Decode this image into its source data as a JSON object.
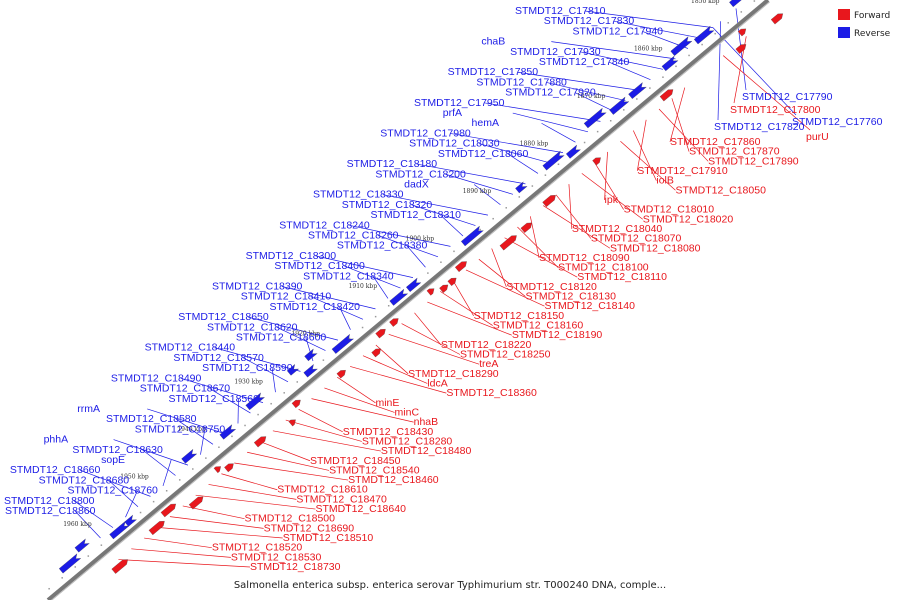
{
  "caption": "Salmonella enterica subsp. enterica serovar Typhimurium str. T000240 DNA, comple...",
  "colors": {
    "forward": "#e8171d",
    "reverse": "#1c1ce6",
    "backbone": "#777777",
    "tick": "#999999"
  },
  "legend": [
    {
      "key": "forward",
      "label": "Forward"
    },
    {
      "key": "reverse",
      "label": "Reverse"
    }
  ],
  "scale": {
    "unit": "kbp",
    "marks": [
      "1850 kbp",
      "1860 kbp",
      "1870 kbp",
      "1880 kbp",
      "1890 kbp",
      "1900 kbp",
      "1910 kbp",
      "1920 kbp",
      "1930 kbp",
      "1940 kbp",
      "1950 kbp",
      "1960 kbp"
    ]
  },
  "reverse_labels": [
    "STMDT12_C17810",
    "STMDT12_C17830",
    "STMDT12_C17940",
    "chaB",
    "STMDT12_C17930",
    "STMDT12_C17840",
    "STMDT12_C17850",
    "STMDT12_C17880",
    "STMDT12_C17920",
    "STMDT12_C17950",
    "prfA",
    "hemA",
    "STMDT12_C17980",
    "STMDT12_C18030",
    "STMDT12_C18060",
    "STMDT12_C18180",
    "STMDT12_C18200",
    "dadX",
    "STMDT12_C18330",
    "STMDT12_C18320",
    "STMDT12_C18310",
    "STMDT12_C18240",
    "STMDT12_C18260",
    "STMDT12_C18380",
    "STMDT12_C18300",
    "STMDT12_C18400",
    "STMDT12_C18340",
    "STMDT12_C18390",
    "STMDT12_C18410",
    "STMDT12_C18420",
    "STMDT12_C18650",
    "STMDT12_C18620",
    "STMDT12_C18600",
    "STMDT12_C18440",
    "STMDT12_C18570",
    "STMDT12_C18590",
    "STMDT12_C18490",
    "STMDT12_C18670",
    "STMDT12_C18560",
    "rrmA",
    "STMDT12_C18580",
    "STMDT12_C18750",
    "phhA",
    "STMDT12_C18630",
    "sopE",
    "STMDT12_C18660",
    "STMDT12_C18680",
    "STMDT12_C18760",
    "STMDT12_C18800",
    "STMDT12_C18860"
  ],
  "right_labels": [
    {
      "t": "STMDT12_C17790",
      "c": "reverse"
    },
    {
      "t": "STMDT12_C17800",
      "c": "forward"
    },
    {
      "t": "STMDT12_C17820",
      "c": "reverse"
    },
    {
      "t": "STMDT12_C17760",
      "c": "reverse"
    },
    {
      "t": "purU",
      "c": "forward"
    }
  ],
  "forward_labels": [
    "STMDT12_C17860",
    "STMDT12_C17870",
    "STMDT12_C17890",
    "STMDT12_C17910",
    "iolB",
    "STMDT12_C18050",
    "ipk",
    "STMDT12_C18010",
    "STMDT12_C18020",
    "STMDT12_C18040",
    "STMDT12_C18070",
    "STMDT12_C18080",
    "STMDT12_C18090",
    "STMDT12_C18100",
    "STMDT12_C18110",
    "STMDT12_C18120",
    "STMDT12_C18130",
    "STMDT12_C18140",
    "STMDT12_C18150",
    "STMDT12_C18160",
    "STMDT12_C18190",
    "STMDT12_C18220",
    "STMDT12_C18250",
    "treA",
    "STMDT12_C18290",
    "ldcA",
    "STMDT12_C18360",
    "minE",
    "minC",
    "nhaB",
    "STMDT12_C18430",
    "STMDT12_C18280",
    "STMDT12_C18480",
    "STMDT12_C18450",
    "STMDT12_C18540",
    "STMDT12_C18460",
    "STMDT12_C18610",
    "STMDT12_C18470",
    "STMDT12_C18640",
    "STMDT12_C18500",
    "STMDT12_C18690",
    "STMDT12_C18510",
    "STMDT12_C18520",
    "STMDT12_C18530",
    "STMDT12_C18730"
  ]
}
